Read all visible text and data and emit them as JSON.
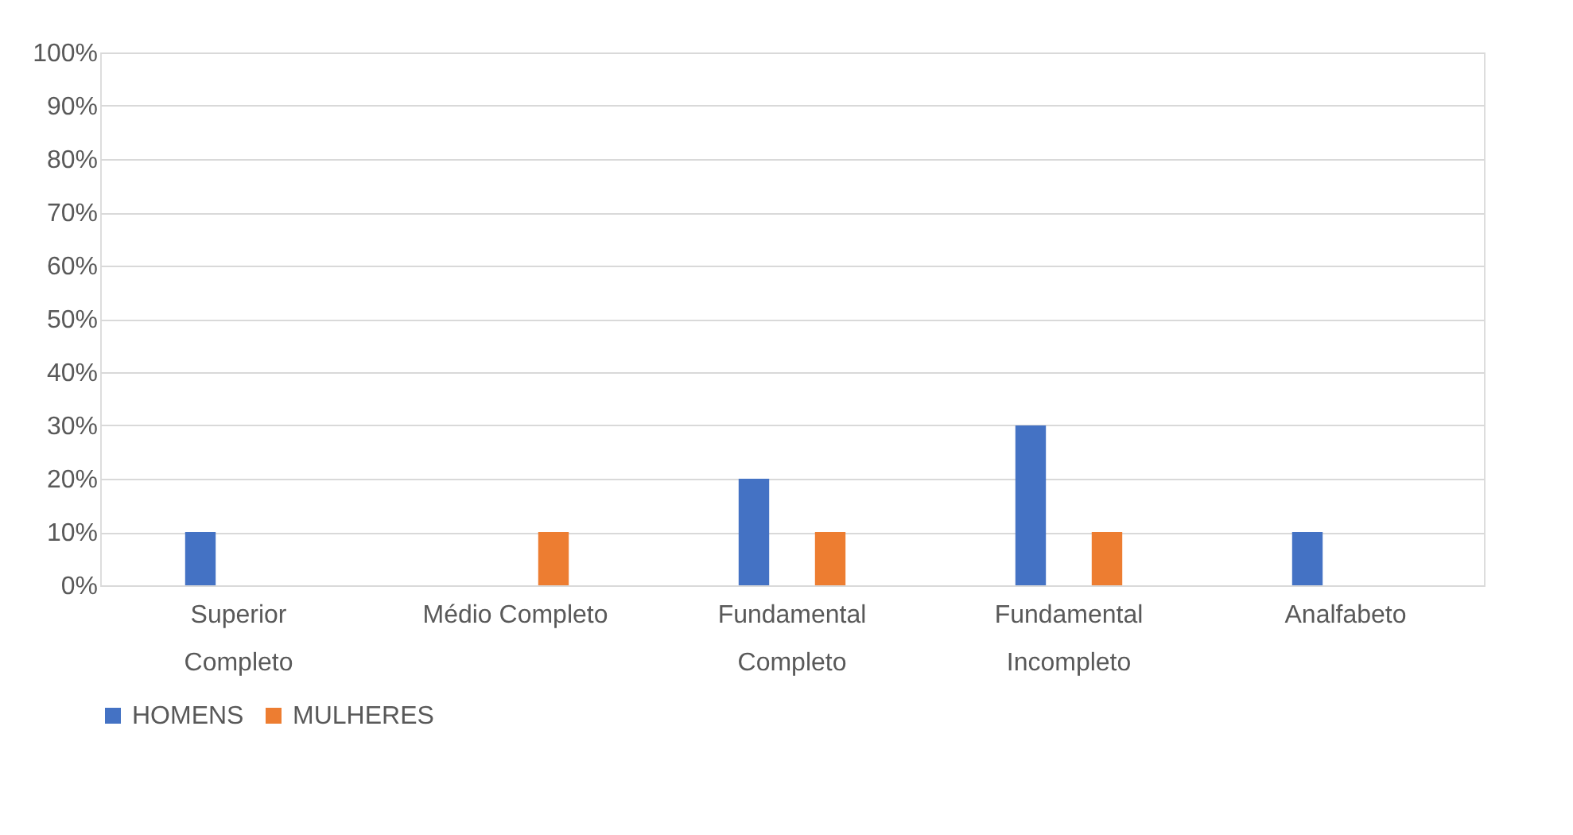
{
  "chart_data": {
    "type": "bar",
    "categories": [
      "Superior Completo",
      "Médio Completo",
      "Fundamental Completo",
      "Fundamental Incompleto",
      "Analfabeto"
    ],
    "series": [
      {
        "name": "HOMENS",
        "color": "#4472c4",
        "values": [
          10,
          0,
          20,
          30,
          10
        ]
      },
      {
        "name": "MULHERES",
        "color": "#ed7d31",
        "values": [
          0,
          10,
          10,
          10,
          0
        ]
      }
    ],
    "ylim": [
      0,
      100
    ],
    "yticks": [
      {
        "value": 0,
        "label": "0%"
      },
      {
        "value": 10,
        "label": "10%"
      },
      {
        "value": 20,
        "label": "20%"
      },
      {
        "value": 30,
        "label": "30%"
      },
      {
        "value": 40,
        "label": "40%"
      },
      {
        "value": 50,
        "label": "50%"
      },
      {
        "value": 60,
        "label": "60%"
      },
      {
        "value": 70,
        "label": "70%"
      },
      {
        "value": 80,
        "label": "80%"
      },
      {
        "value": 90,
        "label": "90%"
      },
      {
        "value": 100,
        "label": "100%"
      }
    ],
    "grid": "y",
    "legend": "bottom"
  }
}
